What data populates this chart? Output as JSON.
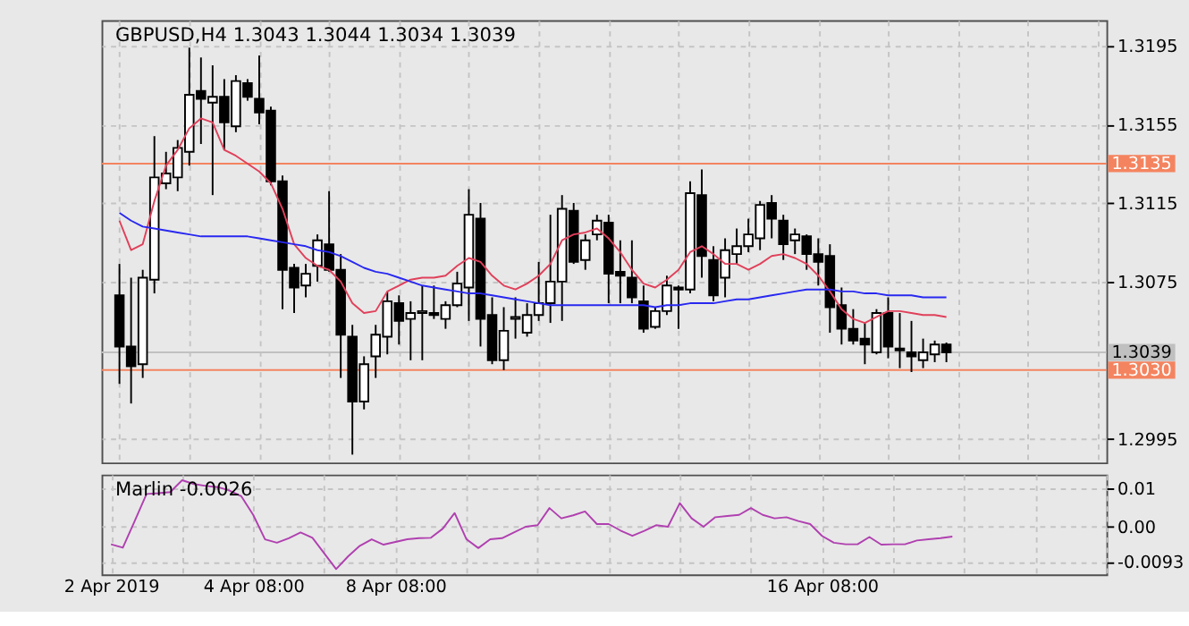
{
  "chart_data": [
    {
      "type": "candlestick",
      "title": "GBPUSD,H4  1.3043 1.3044 1.3034 1.3039",
      "categories": [
        null,
        null,
        null,
        null,
        null,
        null,
        null,
        null,
        null,
        null,
        null,
        null,
        null,
        null,
        null,
        null,
        null,
        null,
        null,
        null,
        null,
        null,
        null,
        null,
        null,
        null,
        null,
        null,
        null,
        null,
        null,
        null,
        null,
        null,
        null,
        null,
        null,
        null,
        null,
        null,
        null,
        null,
        null,
        null,
        null,
        null,
        null,
        null,
        null,
        null,
        null,
        null,
        null,
        null,
        null,
        null,
        null,
        null,
        null,
        null,
        null,
        null,
        null,
        null,
        null,
        null,
        null,
        null,
        null,
        null,
        null,
        null
      ],
      "ohlc": [
        [
          1.3068,
          1.3084,
          1.3023,
          1.3042
        ],
        [
          1.3042,
          1.3077,
          1.3013,
          1.3032
        ],
        [
          1.3033,
          1.3081,
          1.3026,
          1.3077
        ],
        [
          1.3076,
          1.3149,
          1.3069,
          1.3128
        ],
        [
          1.3125,
          1.3141,
          1.3122,
          1.313
        ],
        [
          1.3128,
          1.3147,
          1.3121,
          1.3143
        ],
        [
          1.3141,
          1.3194,
          1.3134,
          1.317
        ],
        [
          1.3172,
          1.3189,
          1.3145,
          1.3168
        ],
        [
          1.3166,
          1.3185,
          1.3119,
          1.3169
        ],
        [
          1.3169,
          1.3178,
          1.3142,
          1.3156
        ],
        [
          1.3154,
          1.318,
          1.3151,
          1.3177
        ],
        [
          1.3176,
          1.3178,
          1.3167,
          1.3169
        ],
        [
          1.3168,
          1.319,
          1.3155,
          1.3161
        ],
        [
          1.3162,
          1.3164,
          1.3124,
          1.3126
        ],
        [
          1.3126,
          1.3129,
          1.3061,
          1.3081
        ],
        [
          1.3082,
          1.3084,
          1.3059,
          1.3072
        ],
        [
          1.3073,
          1.3084,
          1.3067,
          1.3079
        ],
        [
          1.3083,
          1.3099,
          1.3075,
          1.3096
        ],
        [
          1.3094,
          1.3121,
          1.308,
          1.3081
        ],
        [
          1.3081,
          1.3089,
          1.3026,
          1.3048
        ],
        [
          1.3047,
          1.3053,
          1.2987,
          1.3014
        ],
        [
          1.3014,
          1.3037,
          1.301,
          1.3033
        ],
        [
          1.3037,
          1.3053,
          1.3026,
          1.3048
        ],
        [
          1.3047,
          1.307,
          1.3038,
          1.3065
        ],
        [
          1.3064,
          1.3068,
          1.3043,
          1.3055
        ],
        [
          1.3056,
          1.3065,
          1.3035,
          1.3059
        ],
        [
          1.3059,
          1.3073,
          1.3035,
          1.306
        ],
        [
          1.3059,
          1.3073,
          1.3056,
          1.3058
        ],
        [
          1.3056,
          1.3065,
          1.3051,
          1.3063
        ],
        [
          1.3063,
          1.308,
          1.3062,
          1.3074
        ],
        [
          1.3072,
          1.3122,
          1.3055,
          1.3109
        ],
        [
          1.3107,
          1.3115,
          1.3042,
          1.3056
        ],
        [
          1.3058,
          1.3067,
          1.3033,
          1.3035
        ],
        [
          1.3035,
          1.3062,
          1.303,
          1.305
        ],
        [
          1.3056,
          1.3067,
          1.3046,
          1.3057
        ],
        [
          1.3049,
          1.3064,
          1.3047,
          1.3058
        ],
        [
          1.3058,
          1.3085,
          1.3055,
          1.3064
        ],
        [
          1.3064,
          1.3109,
          1.3054,
          1.3075
        ],
        [
          1.3075,
          1.3119,
          1.3055,
          1.3112
        ],
        [
          1.3111,
          1.3115,
          1.3084,
          1.3085
        ],
        [
          1.3086,
          1.3099,
          1.3081,
          1.3096
        ],
        [
          1.3099,
          1.3109,
          1.3096,
          1.3106
        ],
        [
          1.3105,
          1.3109,
          1.3064,
          1.3079
        ],
        [
          1.308,
          1.3096,
          1.3064,
          1.3078
        ],
        [
          1.3077,
          1.3096,
          1.3064,
          1.3067
        ],
        [
          1.3065,
          1.3073,
          1.3049,
          1.3051
        ],
        [
          1.3052,
          1.3062,
          1.3051,
          1.306
        ],
        [
          1.306,
          1.3078,
          1.3058,
          1.3073
        ],
        [
          1.3072,
          1.3073,
          1.3051,
          1.3071
        ],
        [
          1.3071,
          1.3126,
          1.3069,
          1.312
        ],
        [
          1.3119,
          1.3132,
          1.3077,
          1.3088
        ],
        [
          1.3086,
          1.3093,
          1.3065,
          1.3068
        ],
        [
          1.3077,
          1.3097,
          1.3067,
          1.3091
        ],
        [
          1.3089,
          1.3102,
          1.3084,
          1.3093
        ],
        [
          1.3093,
          1.3107,
          1.309,
          1.3099
        ],
        [
          1.3097,
          1.3116,
          1.3091,
          1.3114
        ],
        [
          1.3115,
          1.3119,
          1.3097,
          1.3107
        ],
        [
          1.3106,
          1.3109,
          1.3086,
          1.3094
        ],
        [
          1.3096,
          1.3102,
          1.3089,
          1.3099
        ],
        [
          1.3098,
          1.3099,
          1.3081,
          1.3089
        ],
        [
          1.3089,
          1.3097,
          1.3073,
          1.3085
        ],
        [
          1.3088,
          1.3094,
          1.3049,
          1.3062
        ],
        [
          1.3063,
          1.3072,
          1.3043,
          1.3051
        ],
        [
          1.3051,
          1.3061,
          1.3043,
          1.3045
        ],
        [
          1.3046,
          1.3054,
          1.3033,
          1.3043
        ],
        [
          1.3039,
          1.3061,
          1.3038,
          1.3059
        ],
        [
          1.3059,
          1.3067,
          1.3036,
          1.3042
        ],
        [
          1.3041,
          1.3059,
          1.3031,
          1.304
        ],
        [
          1.3039,
          1.3055,
          1.3029,
          1.3037
        ],
        [
          1.3035,
          1.3046,
          1.3031,
          1.3039
        ],
        [
          1.3038,
          1.3045,
          1.3034,
          1.3043
        ],
        [
          1.3043,
          1.3044,
          1.3034,
          1.3039
        ]
      ],
      "series": [
        {
          "type": "line",
          "color": "#e0405a",
          "values": [
            1.3106,
            1.3091,
            1.3094,
            1.3116,
            1.3134,
            1.3142,
            1.3153,
            1.3158,
            1.3156,
            1.3142,
            1.3139,
            1.3135,
            1.3131,
            1.3125,
            1.3112,
            1.3094,
            1.3087,
            1.3083,
            1.3081,
            1.3075,
            1.3064,
            1.3059,
            1.306,
            1.307,
            1.3073,
            1.3076,
            1.3077,
            1.3077,
            1.3078,
            1.3083,
            1.3087,
            1.3085,
            1.3078,
            1.3073,
            1.3071,
            1.3074,
            1.3078,
            1.3084,
            1.3096,
            1.3099,
            1.31,
            1.3102,
            1.3097,
            1.309,
            1.3081,
            1.3074,
            1.3072,
            1.3076,
            1.3081,
            1.309,
            1.3093,
            1.3089,
            1.3084,
            1.3084,
            1.3081,
            1.3084,
            1.3088,
            1.3089,
            1.3087,
            1.3084,
            1.3078,
            1.307,
            1.3061,
            1.3056,
            1.3054,
            1.3057,
            1.306,
            1.306,
            1.3059,
            1.3058,
            1.3058,
            1.3057
          ]
        },
        {
          "type": "line",
          "color": "#2828f0",
          "values": [
            1.311,
            1.3106,
            1.3103,
            1.3102,
            1.3101,
            1.31,
            1.3099,
            1.3098,
            1.3098,
            1.3098,
            1.3098,
            1.3098,
            1.3097,
            1.3096,
            1.3095,
            1.3094,
            1.3093,
            1.3091,
            1.309,
            1.3088,
            1.3085,
            1.3082,
            1.308,
            1.3079,
            1.3077,
            1.3075,
            1.3073,
            1.3072,
            1.3071,
            1.307,
            1.3069,
            1.3069,
            1.3068,
            1.3067,
            1.3066,
            1.3065,
            1.3064,
            1.3063,
            1.3063,
            1.3063,
            1.3063,
            1.3063,
            1.3063,
            1.3063,
            1.3063,
            1.3063,
            1.3062,
            1.3063,
            1.3063,
            1.3064,
            1.3064,
            1.3064,
            1.3065,
            1.3066,
            1.3066,
            1.3067,
            1.3068,
            1.3069,
            1.307,
            1.3071,
            1.3071,
            1.3071,
            1.307,
            1.307,
            1.3069,
            1.3069,
            1.3068,
            1.3068,
            1.3068,
            1.3067,
            1.3067,
            1.3067
          ]
        }
      ],
      "ylim": [
        1.2983,
        1.3208
      ],
      "yticks": [
        1.3195,
        1.3155,
        1.3115,
        1.3075,
        1.2995
      ],
      "ref_lines": [
        {
          "axis": "y",
          "value": 1.3135,
          "label": "1.3135",
          "color": "#f4845f"
        },
        {
          "axis": "y",
          "value": 1.303,
          "label": "1.3030",
          "color": "#f4845f"
        },
        {
          "axis": "y",
          "value": 1.3039,
          "label": "1.3039",
          "color": "#c0c0c0"
        }
      ],
      "grid": true,
      "tick_labels": "y"
    },
    {
      "type": "line",
      "title": "Marlin -0.0026",
      "categories": [
        "2 Apr 2019",
        null,
        null,
        null,
        null,
        null,
        null,
        null,
        null,
        null,
        null,
        null,
        "4 Apr 08:00",
        null,
        null,
        null,
        null,
        null,
        null,
        null,
        null,
        null,
        null,
        null,
        "8 Apr 08:00",
        null,
        null,
        null,
        null,
        null,
        null,
        null,
        null,
        null,
        null,
        null,
        null,
        null,
        null,
        null,
        null,
        null,
        null,
        null,
        null,
        null,
        null,
        null,
        null,
        null,
        null,
        null,
        null,
        null,
        null,
        null,
        null,
        null,
        null,
        null,
        "16 Apr 08:00",
        null,
        null,
        null,
        null,
        null,
        null,
        null,
        null,
        null,
        null,
        null
      ],
      "series": [
        {
          "color": "#b040b0",
          "values": [
            -0.0046,
            -0.0055,
            0.0015,
            0.0086,
            0.0088,
            0.0091,
            0.0122,
            0.0112,
            0.0107,
            0.0104,
            0.0095,
            0.008,
            0.0031,
            -0.0033,
            -0.0042,
            -0.003,
            -0.0015,
            -0.0029,
            -0.007,
            -0.0111,
            -0.0078,
            -0.005,
            -0.0033,
            -0.0047,
            -0.004,
            -0.0033,
            -0.003,
            -0.0029,
            -0.0005,
            0.0036,
            -0.0033,
            -0.0056,
            -0.0033,
            -0.003,
            -0.0015,
            0.0,
            0.0004,
            0.0049,
            0.0022,
            0.003,
            0.004,
            0.0007,
            0.0007,
            -0.001,
            -0.0024,
            -0.0011,
            0.0004,
            0.0,
            0.0062,
            0.0022,
            0.0,
            0.0025,
            0.0028,
            0.0031,
            0.0049,
            0.0031,
            0.0022,
            0.0025,
            0.0015,
            0.0007,
            -0.0024,
            -0.0042,
            -0.0046,
            -0.0046,
            -0.0027,
            -0.0047,
            -0.0046,
            -0.0046,
            -0.0036,
            -0.0033,
            -0.003,
            -0.0026
          ]
        }
      ],
      "ylim": [
        -0.0125,
        0.0137
      ],
      "yticks": [
        0.01,
        {
          "value": 0,
          "label": "0.00"
        },
        -0.0093
      ],
      "grid": true
    }
  ]
}
